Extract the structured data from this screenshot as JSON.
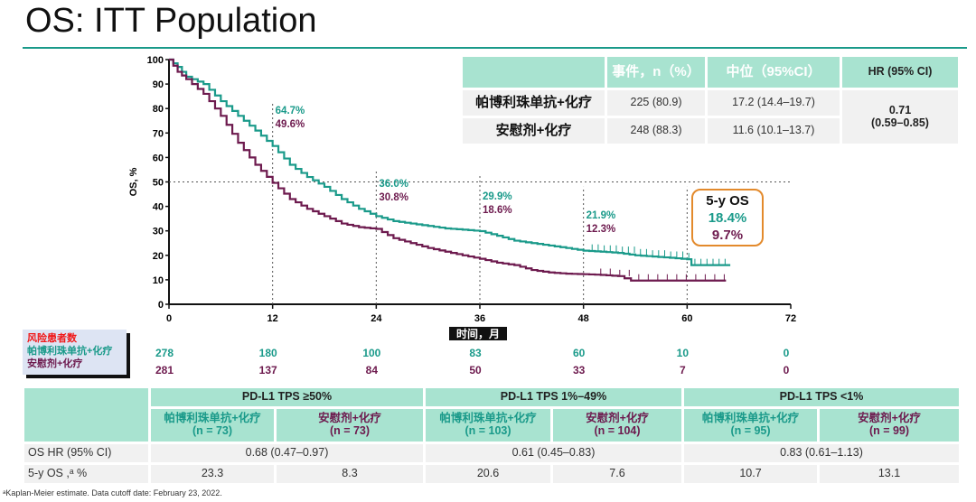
{
  "title": "OS: ITT Population",
  "colors": {
    "pembro": "#1a9a8a",
    "placebo": "#6d1a4e",
    "header_bg": "#a8e3d0",
    "callout_border": "#e38a2c"
  },
  "chart_data": {
    "type": "line",
    "subtype": "kaplan-meier",
    "xlabel": "时间，月",
    "ylabel": "OS, %",
    "xlim": [
      0,
      72
    ],
    "ylim": [
      0,
      100
    ],
    "xticks": [
      0,
      12,
      24,
      36,
      48,
      60,
      72
    ],
    "yticks": [
      0,
      10,
      20,
      30,
      40,
      50,
      60,
      70,
      80,
      90,
      100
    ],
    "reference_line_y": 50,
    "series": [
      {
        "name": "帕博利珠单抗+化疗",
        "color": "#1a9a8a",
        "x": [
          0,
          1,
          2,
          4,
          6,
          8,
          10,
          12,
          14,
          16,
          18,
          20,
          22,
          24,
          26,
          28,
          30,
          32,
          34,
          36,
          38,
          40,
          42,
          44,
          46,
          48,
          50,
          52,
          54,
          56,
          58,
          60,
          60.5,
          65
        ],
        "y": [
          100,
          97,
          93,
          90,
          83,
          77,
          71,
          64.7,
          57,
          52,
          48,
          43,
          39,
          36,
          34,
          33,
          32,
          31,
          30.5,
          29.9,
          28,
          26,
          25,
          24,
          23,
          21.9,
          21.5,
          21,
          20,
          19.5,
          19,
          18.4,
          16,
          16
        ]
      },
      {
        "name": "安慰剂+化疗",
        "color": "#6d1a4e",
        "x": [
          0,
          1,
          2,
          4,
          6,
          8,
          10,
          12,
          14,
          16,
          18,
          20,
          22,
          24,
          26,
          28,
          30,
          32,
          34,
          36,
          38,
          40,
          42,
          44,
          46,
          48,
          50,
          52,
          53.5,
          64.5
        ],
        "y": [
          100,
          95,
          92,
          86,
          77,
          66,
          57,
          49.6,
          43,
          39,
          36,
          33,
          31.5,
          30.8,
          27,
          25,
          23,
          21.5,
          20,
          18.6,
          17,
          16,
          14,
          13,
          12.5,
          12.3,
          12,
          11.5,
          9.7,
          9.7
        ]
      }
    ],
    "annotations": [
      {
        "x": 12,
        "pembro": "64.7%",
        "placebo": "49.6%"
      },
      {
        "x": 24,
        "pembro": "36.0%",
        "placebo": "30.8%"
      },
      {
        "x": 36,
        "pembro": "29.9%",
        "placebo": "18.6%"
      },
      {
        "x": 48,
        "pembro": "21.9%",
        "placebo": "12.3%"
      }
    ],
    "callout": {
      "title": "5-y OS",
      "pembro": "18.4%",
      "placebo": "9.7%"
    }
  },
  "risk": {
    "header": "风险患者数",
    "pembro_label": "帕博利珠单抗+化疗",
    "placebo_label": "安慰剂+化疗",
    "times": [
      0,
      12,
      24,
      36,
      48,
      60,
      72
    ],
    "pembro": [
      "278",
      "180",
      "100",
      "83",
      "60",
      "10",
      "0"
    ],
    "placebo": [
      "281",
      "137",
      "84",
      "50",
      "33",
      "7",
      "0"
    ]
  },
  "summary": {
    "headers": [
      "事件，n（%）",
      "中位（95%CI）",
      "HR (95% CI)"
    ],
    "rows": [
      {
        "arm": "帕博利珠单抗+化疗",
        "events": "225 (80.9)",
        "median": "17.2 (14.4–19.7)"
      },
      {
        "arm": "安慰剂+化疗",
        "events": "248 (88.3)",
        "median": "11.6 (10.1–13.7)"
      }
    ],
    "hr": "0.71",
    "hr_ci": "(0.59–0.85)"
  },
  "subgroups": {
    "groups": [
      "PD-L1 TPS ≥50%",
      "PD-L1 TPS 1%–49%",
      "PD-L1 TPS <1%"
    ],
    "arms": [
      {
        "name": "帕博利珠单抗+化疗",
        "n": "(n = 73)"
      },
      {
        "name": "安慰剂+化疗",
        "n": "(n = 73)"
      },
      {
        "name": "帕博利珠单抗+化疗",
        "n": "(n = 103)"
      },
      {
        "name": "安慰剂+化疗",
        "n": "(n = 104)"
      },
      {
        "name": "帕博利珠单抗+化疗",
        "n": "(n = 95)"
      },
      {
        "name": "安慰剂+化疗",
        "n": "(n = 99)"
      }
    ],
    "hr_label": "OS HR (95% CI)",
    "hr": [
      "0.68 (0.47–0.97)",
      "0.61 (0.45–0.83)",
      "0.83 (0.61–1.13)"
    ],
    "os_label": "5-y OS ,ᵃ %",
    "os": [
      "23.3",
      "8.3",
      "20.6",
      "7.6",
      "10.7",
      "13.1"
    ]
  },
  "footnote": "ᵃKaplan-Meier estimate.  Data cutoff date: February 23, 2022."
}
